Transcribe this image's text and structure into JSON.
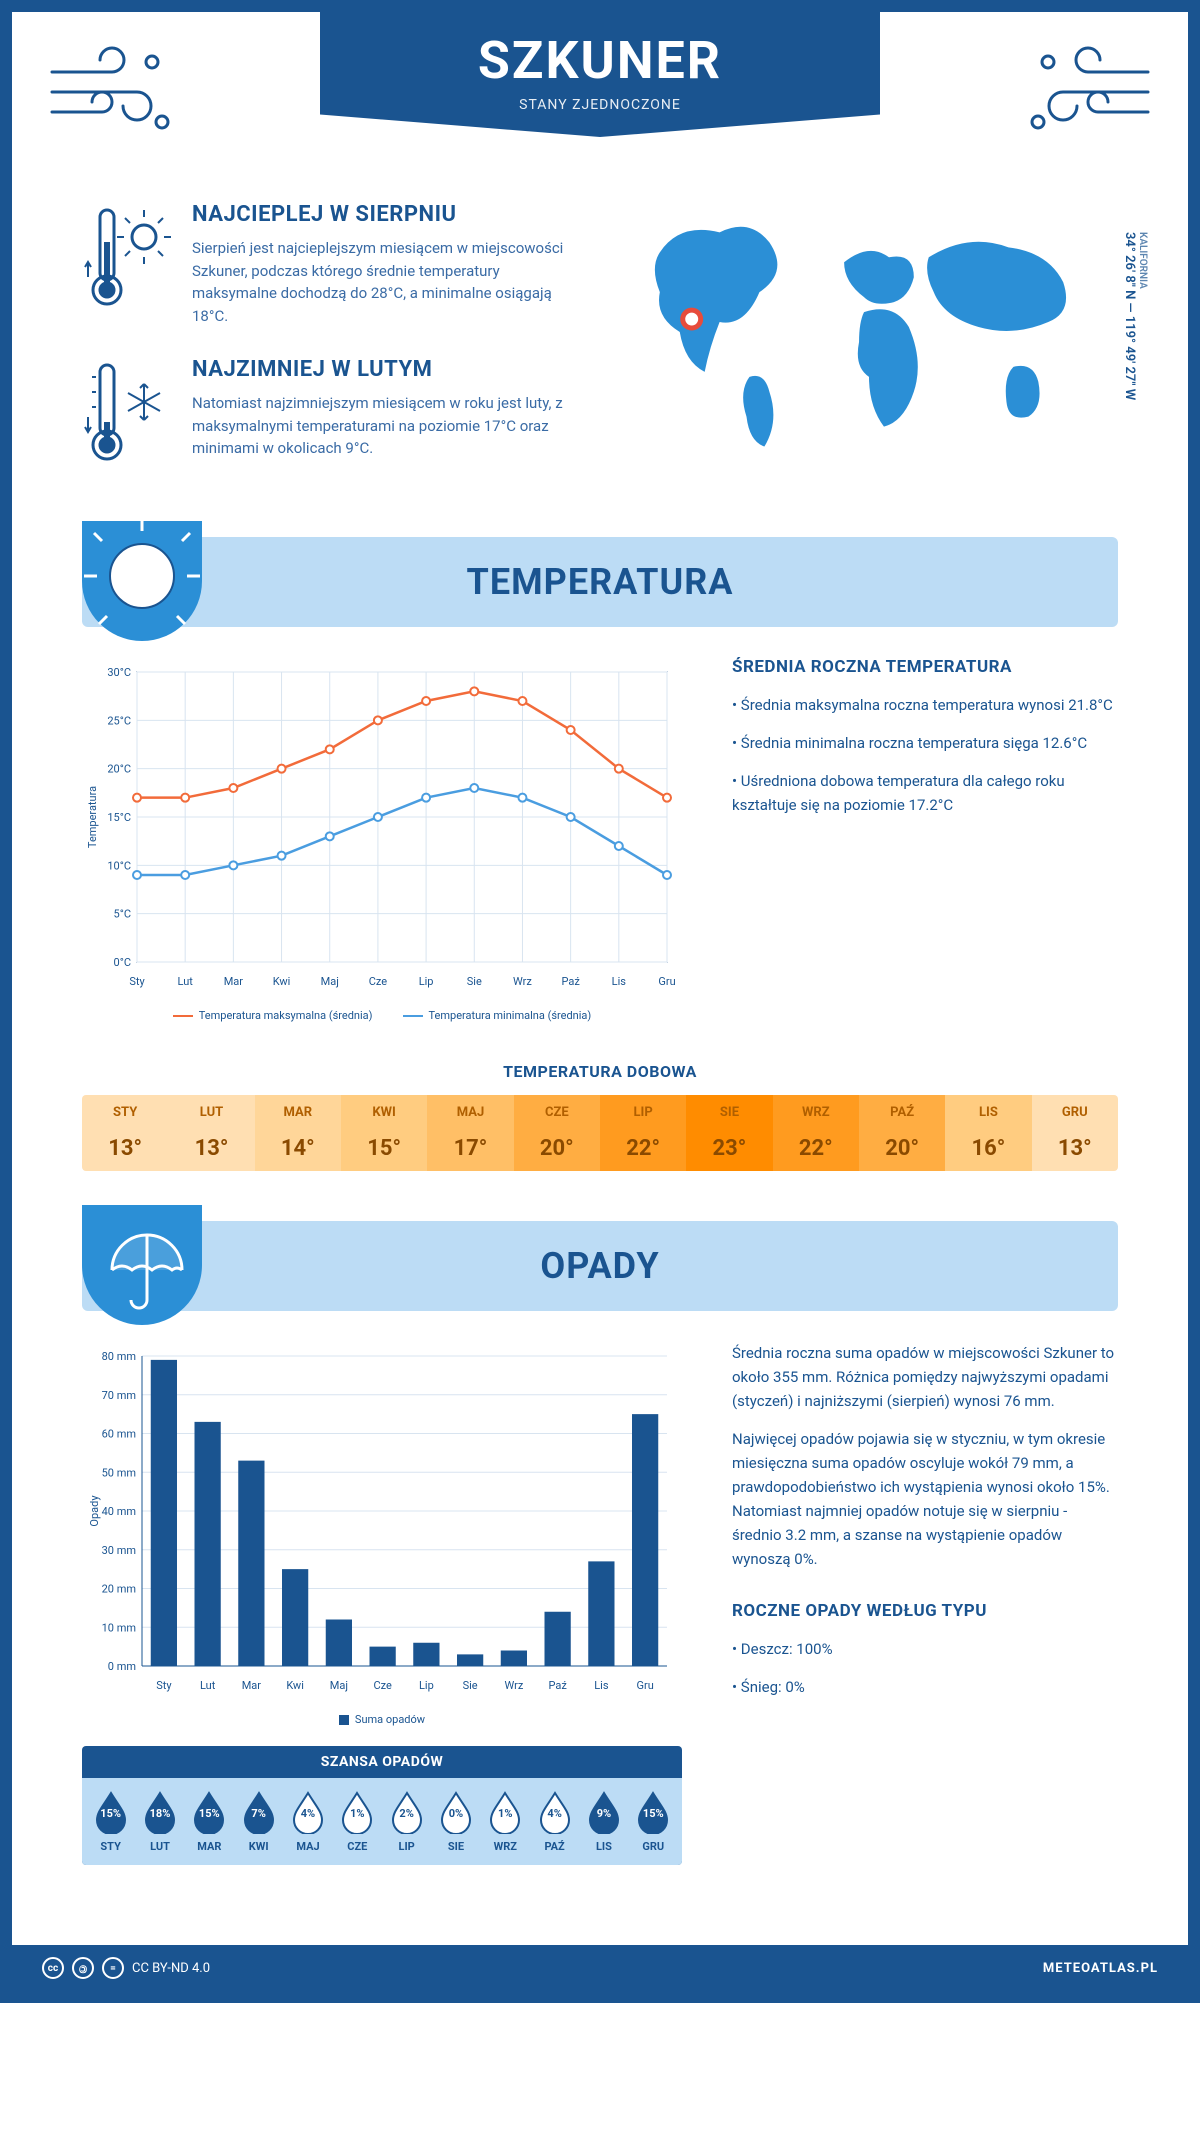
{
  "header": {
    "title": "SZKUNER",
    "subtitle": "STANY ZJEDNOCZONE"
  },
  "coords": {
    "lat": "34° 26' 8\" N",
    "lon": "119° 49' 27\" W",
    "region": "KALIFORNIA"
  },
  "hottest": {
    "title": "NAJCIEPLEJ W SIERPNIU",
    "text": "Sierpień jest najcieplejszym miesiącem w miejscowości Szkuner, podczas którego średnie temperatury maksymalne dochodzą do 28°C, a minimalne osiągają 18°C."
  },
  "coldest": {
    "title": "NAJZIMNIEJ W LUTYM",
    "text": "Natomiast najzimniejszym miesiącem w roku jest luty, z maksymalnymi temperaturami na poziomie 17°C oraz minimami w okolicach 9°C."
  },
  "sections": {
    "temperature": "TEMPERATURA",
    "precipitation": "OPADY"
  },
  "temp_chart": {
    "type": "line",
    "months": [
      "Sty",
      "Lut",
      "Mar",
      "Kwi",
      "Maj",
      "Cze",
      "Lip",
      "Sie",
      "Wrz",
      "Paź",
      "Lis",
      "Gru"
    ],
    "max_values": [
      17,
      17,
      18,
      20,
      22,
      25,
      27,
      28,
      27,
      24,
      20,
      17
    ],
    "min_values": [
      9,
      9,
      10,
      11,
      13,
      15,
      17,
      18,
      17,
      15,
      12,
      9
    ],
    "max_color": "#f26b3a",
    "min_color": "#4a9de0",
    "ylim": [
      0,
      30
    ],
    "ytick_step": 5,
    "y_unit": "°C",
    "ylabel": "Temperatura",
    "grid_color": "#d8e4f0",
    "legend_max": "Temperatura maksymalna (średnia)",
    "legend_min": "Temperatura minimalna (średnia)"
  },
  "temp_stats": {
    "title": "ŚREDNIA ROCZNA TEMPERATURA",
    "items": [
      "• Średnia maksymalna roczna temperatura wynosi 21.8°C",
      "• Średnia minimalna roczna temperatura sięga 12.6°C",
      "• Uśredniona dobowa temperatura dla całego roku kształtuje się na poziomie 17.2°C"
    ]
  },
  "daily_temp": {
    "title": "TEMPERATURA DOBOWA",
    "months": [
      "STY",
      "LUT",
      "MAR",
      "KWI",
      "MAJ",
      "CZE",
      "LIP",
      "SIE",
      "WRZ",
      "PAŹ",
      "LIS",
      "GRU"
    ],
    "values": [
      "13°",
      "13°",
      "14°",
      "15°",
      "17°",
      "20°",
      "22°",
      "23°",
      "22°",
      "20°",
      "16°",
      "13°"
    ],
    "colors": [
      "#ffdfb2",
      "#ffdfb2",
      "#ffd699",
      "#ffcc80",
      "#ffbf66",
      "#ffad42",
      "#ff9b1f",
      "#ff8c00",
      "#ff9b1f",
      "#ffad42",
      "#ffcc80",
      "#ffdfb2"
    ]
  },
  "precip_chart": {
    "type": "bar",
    "months": [
      "Sty",
      "Lut",
      "Mar",
      "Kwi",
      "Maj",
      "Cze",
      "Lip",
      "Sie",
      "Wrz",
      "Paź",
      "Lis",
      "Gru"
    ],
    "values": [
      79,
      63,
      53,
      25,
      12,
      5,
      6,
      3,
      4,
      14,
      27,
      65
    ],
    "bar_color": "#1a5490",
    "ylim": [
      0,
      80
    ],
    "ytick_step": 10,
    "y_unit": " mm",
    "ylabel": "Opady",
    "grid_color": "#d8e4f0",
    "legend": "Suma opadów"
  },
  "precip_text": {
    "p1": "Średnia roczna suma opadów w miejscowości Szkuner to około 355 mm. Różnica pomiędzy najwyższymi opadami (styczeń) i najniższymi (sierpień) wynosi 76 mm.",
    "p2": "Najwięcej opadów pojawia się w styczniu, w tym okresie miesięczna suma opadów oscyluje wokół 79 mm, a prawdopodobieństwo ich wystąpienia wynosi około 15%. Natomiast najmniej opadów notuje się w sierpniu - średnio 3.2 mm, a szanse na wystąpienie opadów wynoszą 0%."
  },
  "rain_chance": {
    "title": "SZANSA OPADÓW",
    "months": [
      "STY",
      "LUT",
      "MAR",
      "KWI",
      "MAJ",
      "CZE",
      "LIP",
      "SIE",
      "WRZ",
      "PAŹ",
      "LIS",
      "GRU"
    ],
    "values": [
      15,
      18,
      15,
      7,
      4,
      1,
      2,
      0,
      1,
      4,
      9,
      15
    ],
    "full_threshold": 7,
    "full_color": "#1a5490",
    "empty_stroke": "#1a5490"
  },
  "annual_precip": {
    "title": "ROCZNE OPADY WEDŁUG TYPU",
    "items": [
      "• Deszcz: 100%",
      "• Śnieg: 0%"
    ]
  },
  "footer": {
    "license": "CC BY-ND 4.0",
    "brand": "METEOATLAS.PL"
  }
}
